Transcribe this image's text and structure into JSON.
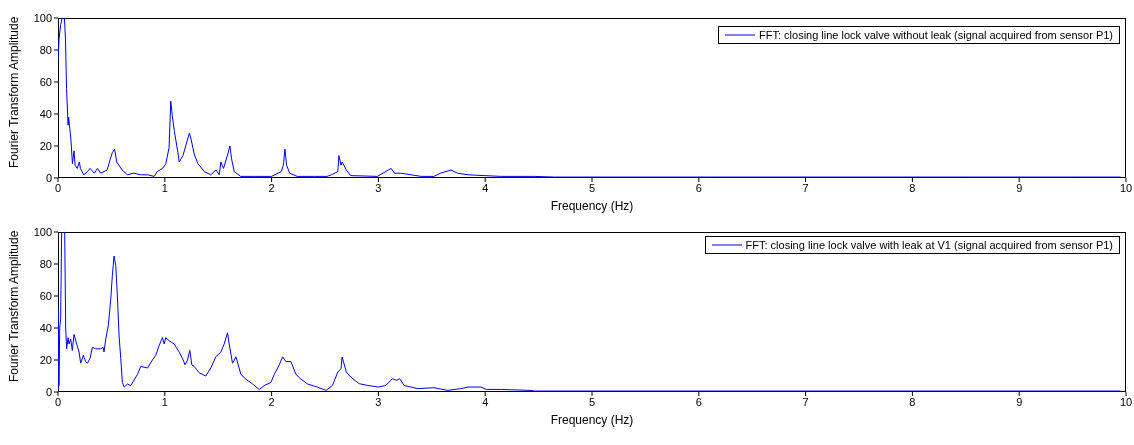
{
  "chart_data": [
    {
      "type": "line",
      "xlabel": "Frequency (Hz)",
      "ylabel": "Fourier Transform Amplitude",
      "xlim": [
        0,
        10
      ],
      "ylim": [
        0,
        100
      ],
      "xticks": [
        0,
        1,
        2,
        3,
        4,
        5,
        6,
        7,
        8,
        9,
        10
      ],
      "yticks": [
        0,
        20,
        40,
        60,
        80,
        100
      ],
      "legend": "top right",
      "marker": "none",
      "line_style": "solid",
      "series": [
        {
          "name": "FFT: closing line lock valve without leak (signal acquired from sensor P1)",
          "color": "#0000ff",
          "x": [
            0,
            0.01,
            0.025,
            0.04,
            0.06,
            0.07,
            0.08,
            0.09,
            0.094,
            0.1,
            0.11,
            0.12,
            0.135,
            0.15,
            0.16,
            0.18,
            0.2,
            0.21,
            0.24,
            0.275,
            0.3,
            0.34,
            0.37,
            0.4,
            0.46,
            0.49,
            0.51,
            0.53,
            0.55,
            0.57,
            0.6,
            0.65,
            0.71,
            0.775,
            0.84,
            0.9,
            0.93,
            0.98,
            1.01,
            1.04,
            1.056,
            1.07,
            1.09,
            1.12,
            1.135,
            1.17,
            1.2,
            1.23,
            1.244,
            1.275,
            1.31,
            1.37,
            1.43,
            1.48,
            1.51,
            1.525,
            1.55,
            1.59,
            1.61,
            1.625,
            1.65,
            1.71,
            1.84,
            2.0,
            2.09,
            2.11,
            2.125,
            2.14,
            2.17,
            2.24,
            2.4,
            2.52,
            2.56,
            2.62,
            2.63,
            2.65,
            2.66,
            2.7,
            2.74,
            2.99,
            3.12,
            3.15,
            3.21,
            3.4,
            3.52,
            3.58,
            3.68,
            3.74,
            3.84,
            3.99,
            4.15,
            4.46,
            4.65,
            5,
            6,
            6.15,
            7.5,
            8.5,
            9.5,
            9.95
          ],
          "values": [
            73,
            87,
            96,
            100,
            100,
            87,
            56,
            40,
            33,
            38,
            31,
            25,
            9,
            17,
            8,
            6,
            10,
            6,
            2,
            4,
            6,
            3,
            6,
            3,
            5,
            12,
            16,
            18,
            10,
            8,
            5,
            2,
            3,
            2,
            2,
            1,
            4,
            6,
            9,
            19,
            48,
            39,
            29,
            17,
            10,
            14,
            21,
            28,
            25,
            15,
            9,
            4,
            2,
            5,
            2,
            10,
            6,
            15,
            20,
            12,
            4,
            1,
            1,
            1,
            4,
            8,
            18,
            8,
            3,
            1,
            1,
            1,
            2,
            4,
            14,
            8,
            10,
            5,
            1.5,
            1,
            6,
            3,
            3,
            1,
            1,
            3,
            5,
            3,
            2,
            1.5,
            1,
            1,
            0.6,
            0.6,
            0.6,
            0.6,
            0.6,
            0.6,
            0.6,
            0.6
          ]
        }
      ]
    },
    {
      "type": "line",
      "xlabel": "Frequency (Hz)",
      "ylabel": "Fourier Transform Amplitude",
      "xlim": [
        0,
        10
      ],
      "ylim": [
        0,
        100
      ],
      "xticks": [
        0,
        1,
        2,
        3,
        4,
        5,
        6,
        7,
        8,
        9,
        10
      ],
      "yticks": [
        0,
        20,
        40,
        60,
        80,
        100
      ],
      "legend": "top right",
      "marker": "none",
      "line_style": "solid",
      "series": [
        {
          "name": "FFT: closing line lock valve with leak at V1 (signal acquired from sensor P1)",
          "color": "#0000ff",
          "x": [
            0,
            0.003,
            0.009,
            0.016,
            0.025,
            0.034,
            0.05,
            0.0625,
            0.072,
            0.081,
            0.094,
            0.103,
            0.119,
            0.134,
            0.15,
            0.175,
            0.197,
            0.2125,
            0.2375,
            0.259,
            0.275,
            0.3,
            0.322,
            0.353,
            0.4,
            0.422,
            0.431,
            0.447,
            0.472,
            0.494,
            0.509,
            0.525,
            0.541,
            0.556,
            0.572,
            0.5875,
            0.603,
            0.619,
            0.65,
            0.681,
            0.744,
            0.775,
            0.8375,
            0.884,
            0.916,
            0.947,
            0.978,
            0.994,
            1.009,
            1.041,
            1.0875,
            1.134,
            1.166,
            1.19,
            1.2125,
            1.234,
            1.253,
            1.275,
            1.322,
            1.384,
            1.431,
            1.478,
            1.525,
            1.556,
            1.5875,
            1.603,
            1.634,
            1.666,
            1.7125,
            1.759,
            1.822,
            1.884,
            1.931,
            1.994,
            2.025,
            2.072,
            2.103,
            2.134,
            2.181,
            2.228,
            2.275,
            2.3375,
            2.431,
            2.51,
            2.57,
            2.62,
            2.65,
            2.66,
            2.7,
            2.74,
            2.82,
            2.9,
            3.0,
            3.07,
            3.13,
            3.17,
            3.2,
            3.24,
            3.37,
            3.52,
            3.65,
            3.77,
            3.84,
            3.96,
            4.01,
            4.15,
            4.43,
            4.46,
            5.5,
            6.5,
            7.5,
            8.5,
            9.5,
            9.95
          ],
          "values": [
            2,
            52,
            4,
            40,
            46,
            100,
            100,
            100,
            40,
            27,
            34,
            30,
            33,
            26,
            36,
            30,
            25,
            18,
            23,
            19,
            18,
            21,
            28,
            27,
            27,
            28,
            25,
            33,
            42,
            58,
            73,
            85,
            79,
            60,
            35,
            21,
            6,
            3,
            5,
            4,
            11,
            16,
            15,
            20,
            23,
            29,
            34,
            30,
            34,
            32,
            30,
            25,
            21,
            17,
            20,
            26,
            17,
            16,
            12,
            10,
            15,
            22,
            25,
            30,
            37,
            30,
            18,
            22,
            11,
            8,
            5,
            1.5,
            4,
            6,
            11,
            17,
            22,
            19,
            19,
            11,
            8,
            5,
            3,
            1,
            4.1,
            12.5,
            14.6,
            21.9,
            12.5,
            9.4,
            5.2,
            4.1,
            3.1,
            4.1,
            8.3,
            7.3,
            8.3,
            4.1,
            2.1,
            2.7,
            1,
            2.1,
            3.1,
            3.1,
            1.6,
            1.6,
            1,
            0.6,
            0.6,
            0.6,
            0.6,
            0.6,
            0.6,
            0.6
          ]
        }
      ]
    }
  ]
}
